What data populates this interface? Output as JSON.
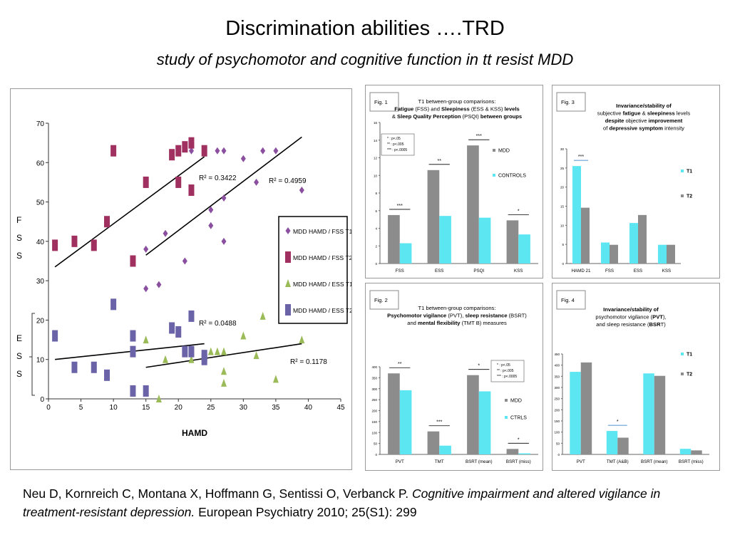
{
  "slide": {
    "title": "Discrimination abilities ….TRD",
    "subtitle": "study of psychomotor and cognitive function in tt resist MDD",
    "citation": {
      "authors": "Neu D, Kornreich C, Montana X, Hoffmann G, Sentissi O, Verbanck P.",
      "article": "Cognitive impairment and altered vigilance in treatment-resistant depression.",
      "source": "European Psychiatry 2010; 25(S1): 299"
    }
  },
  "chart_data": [
    {
      "id": "scatter",
      "type": "scatter",
      "xlabel": "HAMD",
      "ylabel_fss": "FSS",
      "ylabel_ess": "ESS",
      "xlim": [
        0,
        45
      ],
      "ylim": [
        0,
        70
      ],
      "x_ticks": [
        "0",
        "5",
        "10",
        "15",
        "20",
        "25",
        "30",
        "35",
        "40",
        "45"
      ],
      "y_ticks": [
        "0",
        "10",
        "20",
        "30",
        "40",
        "50",
        "60",
        "70"
      ],
      "series": [
        {
          "name": "MDD HAMD / FSS T1",
          "color": "#8a4f9f",
          "marker": "diamond",
          "points": [
            [
              15,
              38
            ],
            [
              15,
              28
            ],
            [
              17,
              29
            ],
            [
              18,
              42
            ],
            [
              21,
              35
            ],
            [
              22,
              63
            ],
            [
              25,
              44
            ],
            [
              25,
              48
            ],
            [
              26,
              63
            ],
            [
              27,
              63
            ],
            [
              27,
              51
            ],
            [
              27,
              40
            ],
            [
              30,
              61
            ],
            [
              32,
              55
            ],
            [
              33,
              63
            ],
            [
              35,
              63
            ],
            [
              39,
              53
            ]
          ]
        },
        {
          "name": "MDD HAMD / FSS T2",
          "color": "#a0305f",
          "marker": "rect",
          "points": [
            [
              1,
              39
            ],
            [
              4,
              40
            ],
            [
              7,
              39
            ],
            [
              9,
              45
            ],
            [
              10,
              63
            ],
            [
              13,
              35
            ],
            [
              15,
              55
            ],
            [
              19,
              62
            ],
            [
              20,
              63
            ],
            [
              20,
              55
            ],
            [
              21,
              64
            ],
            [
              22,
              65
            ],
            [
              22,
              53
            ],
            [
              24,
              63
            ]
          ]
        },
        {
          "name": "MDD HAMD / ESS T1",
          "color": "#9bbb59",
          "marker": "triangle",
          "points": [
            [
              15,
              15
            ],
            [
              17,
              0
            ],
            [
              18,
              10
            ],
            [
              22,
              10
            ],
            [
              22,
              12
            ],
            [
              24,
              10
            ],
            [
              25,
              12
            ],
            [
              26,
              12
            ],
            [
              27,
              12
            ],
            [
              27,
              7
            ],
            [
              27,
              4
            ],
            [
              30,
              16
            ],
            [
              32,
              11
            ],
            [
              33,
              21
            ],
            [
              35,
              5
            ],
            [
              39,
              15
            ]
          ]
        },
        {
          "name": "MDD HAMD / ESS T2",
          "color": "#6a63a8",
          "marker": "rect",
          "points": [
            [
              1,
              16
            ],
            [
              4,
              8
            ],
            [
              7,
              8
            ],
            [
              9,
              6
            ],
            [
              10,
              24
            ],
            [
              13,
              16
            ],
            [
              13,
              12
            ],
            [
              13,
              2
            ],
            [
              15,
              2
            ],
            [
              19,
              18
            ],
            [
              20,
              17
            ],
            [
              21,
              12
            ],
            [
              22,
              12
            ],
            [
              22,
              21
            ],
            [
              24,
              10
            ],
            [
              24,
              11
            ]
          ]
        }
      ],
      "regressions": [
        {
          "x": [
            1,
            24
          ],
          "y": [
            33.5,
            61.5
          ],
          "r2": "R² = 0.3422"
        },
        {
          "x": [
            15,
            39
          ],
          "y": [
            36.5,
            66.5
          ],
          "r2": "R² = 0.4959"
        },
        {
          "x": [
            1,
            24
          ],
          "y": [
            10,
            14
          ],
          "r2": "R² = 0.0488"
        },
        {
          "x": [
            15,
            39
          ],
          "y": [
            8,
            14
          ],
          "r2": "R² = 0.1178"
        }
      ]
    },
    {
      "id": "fig1",
      "type": "bar",
      "fig_label": "Fig. 1",
      "heading": [
        [
          {
            "t": "T1 between-group comparisons:",
            "b": false
          }
        ],
        [
          {
            "t": "Fatigue",
            "b": true
          },
          {
            "t": " (FSS) and ",
            "b": false
          },
          {
            "t": "Sleepiness",
            "b": true
          },
          {
            "t": " (ESS & KSS) ",
            "b": false
          },
          {
            "t": "levels",
            "b": true
          }
        ],
        [
          {
            "t": "& ",
            "b": false
          },
          {
            "t": "Sleep Quality Perception",
            "b": true
          },
          {
            "t": " (PSQI) ",
            "b": false
          },
          {
            "t": "between groups",
            "b": true
          }
        ]
      ],
      "categories": [
        "FSS",
        "ESS",
        "PSQI",
        "KSS"
      ],
      "series": [
        {
          "name": "MDD",
          "color": "#8c8c8c",
          "values": [
            5.5,
            10.6,
            13.4,
            4.9
          ]
        },
        {
          "name": "CONTROLS",
          "color": "#5ce6f2",
          "values": [
            2.3,
            5.4,
            5.2,
            3.3
          ]
        }
      ],
      "ylim": [
        0,
        16
      ],
      "y_ticks": [
        "0",
        "2",
        "4",
        "6",
        "8",
        "10",
        "12",
        "14",
        "16"
      ],
      "significance": [
        "***",
        "**",
        "***",
        "*"
      ],
      "legend_box": [
        "* : p<.05",
        "** : p<.005",
        "*** : p<.0005"
      ]
    },
    {
      "id": "fig3",
      "type": "bar",
      "fig_label": "Fig. 3",
      "heading": [
        [
          {
            "t": "Invariance/stability of",
            "b": true
          }
        ],
        [
          {
            "t": "subjective ",
            "b": false
          },
          {
            "t": "fatigue",
            "b": true
          },
          {
            "t": " & ",
            "b": false
          },
          {
            "t": "sleepiness",
            "b": true
          },
          {
            "t": " levels",
            "b": false
          }
        ],
        [
          {
            "t": "despite",
            "b": true
          },
          {
            "t": " objective ",
            "b": false
          },
          {
            "t": "improvement",
            "b": true
          }
        ],
        [
          {
            "t": "of ",
            "b": false
          },
          {
            "t": "depressive symptom",
            "b": true
          },
          {
            "t": " intensity",
            "b": false
          }
        ]
      ],
      "categories": [
        "HAMD 21",
        "FSS",
        "ESS",
        "KSS"
      ],
      "series": [
        {
          "name": "T1",
          "color": "#5ce6f2",
          "values": [
            25.5,
            5.5,
            10.6,
            4.9
          ]
        },
        {
          "name": "T2",
          "color": "#8c8c8c",
          "values": [
            14.6,
            4.9,
            12.7,
            4.9
          ]
        }
      ],
      "ylim": [
        0,
        30
      ],
      "y_ticks": [
        "0",
        "5",
        "10",
        "15",
        "20",
        "25",
        "30"
      ],
      "significance": [
        "***",
        "",
        "",
        ""
      ],
      "legend_box": []
    },
    {
      "id": "fig2",
      "type": "bar",
      "fig_label": "Fig. 2",
      "heading": [
        [
          {
            "t": "T1 between-group comparisons:",
            "b": false
          }
        ],
        [
          {
            "t": "Psychomotor vigilance",
            "b": true
          },
          {
            "t": " (PVT), ",
            "b": false
          },
          {
            "t": "sleep resistance",
            "b": true
          },
          {
            "t": " (BSRT)",
            "b": false
          }
        ],
        [
          {
            "t": "and ",
            "b": false
          },
          {
            "t": "mental flexibility",
            "b": true
          },
          {
            "t": " (TMT B) measures",
            "b": false
          }
        ]
      ],
      "categories": [
        "PVT",
        "TMT",
        "BSRT (mean)",
        "BSRT (miss)"
      ],
      "series": [
        {
          "name": "MDD",
          "color": "#8c8c8c",
          "values": [
            370,
            105,
            362,
            25
          ]
        },
        {
          "name": "CTRLS",
          "color": "#5ce6f2",
          "values": [
            293,
            40,
            288,
            5
          ]
        }
      ],
      "ylim": [
        0,
        400
      ],
      "y_ticks": [
        "0",
        "50",
        "100",
        "150",
        "200",
        "250",
        "300",
        "350",
        "400"
      ],
      "significance": [
        "**",
        "***",
        "*",
        "*"
      ],
      "legend_box": [
        "* : p<.05",
        "** : p<.005",
        "*** : p<.0005"
      ]
    },
    {
      "id": "fig4",
      "type": "bar",
      "fig_label": "Fig. 4",
      "heading": [
        [
          {
            "t": "Invariance/stability of",
            "b": true
          }
        ],
        [
          {
            "t": "psychomotor vigilance (",
            "b": false
          },
          {
            "t": "PVT",
            "b": true
          },
          {
            "t": "),",
            "b": false
          }
        ],
        [
          {
            "t": "and sleep resistance (",
            "b": false
          },
          {
            "t": "BSR",
            "b": true
          },
          {
            "t": "T)",
            "b": false
          }
        ]
      ],
      "categories": [
        "PVT",
        "TMT (A&B)",
        "BSRT (mean)",
        "BSRT (miss)"
      ],
      "series": [
        {
          "name": "T1",
          "color": "#5ce6f2",
          "values": [
            370,
            105,
            363,
            25
          ]
        },
        {
          "name": "T2",
          "color": "#8c8c8c",
          "values": [
            412,
            75,
            352,
            18
          ]
        }
      ],
      "ylim": [
        0,
        450
      ],
      "y_ticks": [
        "0",
        "50",
        "100",
        "150",
        "200",
        "250",
        "300",
        "350",
        "400",
        "450"
      ],
      "significance": [
        "",
        "*",
        "",
        ""
      ],
      "legend_box": []
    }
  ]
}
